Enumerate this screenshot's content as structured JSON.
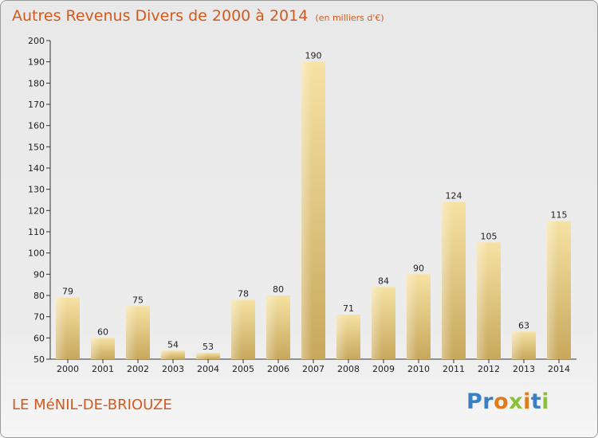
{
  "header": {
    "title": "Autres Revenus Divers de 2000 à 2014",
    "unit": "(en milliers d'€)"
  },
  "footer": {
    "commune": "LE MéNIL-DE-BRIOUZE",
    "logo_text": "Proxiti"
  },
  "colors": {
    "title": "#d35a1e",
    "bar_light": "#f6e2a4",
    "bar_dark": "#c8a85c",
    "axis": "#333333",
    "grid": "#d9d9d9"
  },
  "chart_data": {
    "type": "bar",
    "title": "Autres Revenus Divers de 2000 à 2014",
    "categories": [
      "2000",
      "2001",
      "2002",
      "2003",
      "2004",
      "2005",
      "2006",
      "2007",
      "2008",
      "2009",
      "2010",
      "2011",
      "2012",
      "2013",
      "2014"
    ],
    "values": [
      79,
      60,
      75,
      54,
      53,
      78,
      80,
      190,
      71,
      84,
      90,
      124,
      105,
      63,
      115
    ],
    "ylim": [
      50,
      200
    ],
    "yticks": [
      50,
      60,
      70,
      80,
      90,
      100,
      110,
      120,
      130,
      140,
      150,
      160,
      170,
      180,
      190,
      200
    ],
    "grid": false,
    "xlabel": "",
    "ylabel": ""
  }
}
